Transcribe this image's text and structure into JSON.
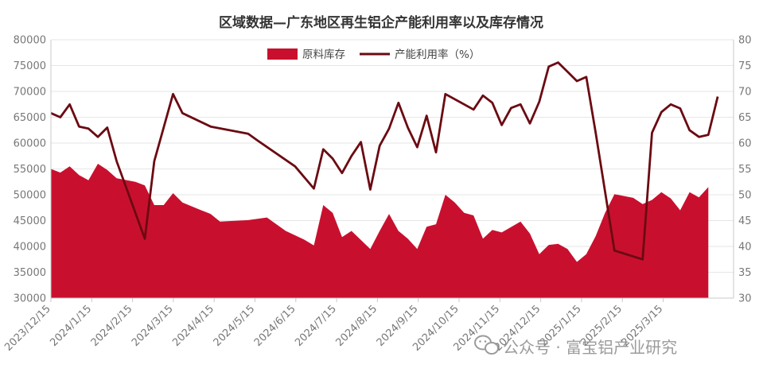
{
  "chart_data": {
    "type": "area+line",
    "title": "区域数据—广东地区再生铝企产能利用率以及库存情况",
    "x_ticks": [
      "2023/12/15",
      "2024/1/15",
      "2024/2/15",
      "2024/3/15",
      "2024/4/15",
      "2024/5/15",
      "2024/6/15",
      "2024/7/15",
      "2024/8/15",
      "2024/9/15",
      "2024/10/15",
      "2024/11/15",
      "2024/12/15",
      "2025/1/15",
      "2025/2/15",
      "2025/3/15"
    ],
    "y_left": {
      "min": 30000,
      "max": 80000,
      "step": 5000,
      "ticks": [
        "30000",
        "35000",
        "40000",
        "45000",
        "50000",
        "55000",
        "60000",
        "65000",
        "70000",
        "75000",
        "80000"
      ]
    },
    "y_right": {
      "min": 30,
      "max": 80,
      "step": 5,
      "ticks": [
        "30",
        "35",
        "40",
        "45",
        "50",
        "55",
        "60",
        "65",
        "70",
        "75",
        "80"
      ]
    },
    "legend": {
      "position": "top-center"
    },
    "series": [
      {
        "name": "原料库存",
        "kind": "area",
        "axis": "left",
        "color": "#c8102e",
        "points": [
          [
            "2023-12-15",
            55000
          ],
          [
            "2023-12-22",
            54300
          ],
          [
            "2023-12-29",
            55500
          ],
          [
            "2024-01-05",
            53800
          ],
          [
            "2024-01-12",
            52800
          ],
          [
            "2024-01-19",
            56000
          ],
          [
            "2024-01-26",
            54800
          ],
          [
            "2024-02-02",
            53200
          ],
          [
            "2024-02-16",
            52500
          ],
          [
            "2024-02-23",
            51800
          ],
          [
            "2024-03-01",
            48000
          ],
          [
            "2024-03-08",
            48000
          ],
          [
            "2024-03-15",
            50300
          ],
          [
            "2024-03-22",
            48500
          ],
          [
            "2024-04-05",
            47000
          ],
          [
            "2024-04-12",
            46300
          ],
          [
            "2024-04-19",
            44800
          ],
          [
            "2024-05-10",
            45100
          ],
          [
            "2024-05-24",
            45600
          ],
          [
            "2024-06-07",
            43000
          ],
          [
            "2024-06-21",
            41300
          ],
          [
            "2024-06-28",
            40200
          ],
          [
            "2024-07-05",
            48000
          ],
          [
            "2024-07-12",
            46500
          ],
          [
            "2024-07-19",
            41800
          ],
          [
            "2024-07-26",
            43000
          ],
          [
            "2024-08-09",
            39500
          ],
          [
            "2024-08-16",
            43000
          ],
          [
            "2024-08-23",
            46300
          ],
          [
            "2024-08-30",
            43000
          ],
          [
            "2024-09-06",
            41500
          ],
          [
            "2024-09-13",
            39500
          ],
          [
            "2024-09-20",
            43800
          ],
          [
            "2024-09-27",
            44300
          ],
          [
            "2024-10-04",
            50000
          ],
          [
            "2024-10-11",
            48500
          ],
          [
            "2024-10-18",
            46500
          ],
          [
            "2024-10-25",
            46000
          ],
          [
            "2024-11-01",
            41500
          ],
          [
            "2024-11-08",
            43200
          ],
          [
            "2024-11-15",
            42700
          ],
          [
            "2024-11-29",
            44800
          ],
          [
            "2024-12-06",
            42500
          ],
          [
            "2024-12-13",
            38500
          ],
          [
            "2024-12-20",
            40300
          ],
          [
            "2024-12-27",
            40500
          ],
          [
            "2025-01-03",
            39500
          ],
          [
            "2025-01-10",
            37000
          ],
          [
            "2025-01-17",
            38500
          ],
          [
            "2025-01-24",
            42000
          ],
          [
            "2025-01-31",
            46500
          ],
          [
            "2025-02-07",
            50100
          ],
          [
            "2025-02-21",
            49400
          ],
          [
            "2025-02-28",
            48200
          ],
          [
            "2025-03-07",
            49000
          ],
          [
            "2025-03-14",
            50500
          ],
          [
            "2025-03-21",
            49300
          ],
          [
            "2025-03-28",
            47000
          ],
          [
            "2025-04-04",
            50500
          ],
          [
            "2025-04-11",
            49500
          ],
          [
            "2025-04-18",
            51500
          ]
        ]
      },
      {
        "name": "产能利用率（%）",
        "kind": "line",
        "axis": "right",
        "color": "#6b0a12",
        "points": [
          [
            "2023-12-15",
            65.8
          ],
          [
            "2023-12-22",
            65.0
          ],
          [
            "2023-12-29",
            67.5
          ],
          [
            "2024-01-05",
            63.2
          ],
          [
            "2024-01-12",
            62.8
          ],
          [
            "2024-01-19",
            61.2
          ],
          [
            "2024-01-26",
            63.0
          ],
          [
            "2024-02-02",
            56.5
          ],
          [
            "2024-02-09",
            51.5
          ],
          [
            "2024-02-16",
            46.5
          ],
          [
            "2024-02-23",
            41.5
          ],
          [
            "2024-03-01",
            56.5
          ],
          [
            "2024-03-15",
            69.5
          ],
          [
            "2024-03-22",
            65.8
          ],
          [
            "2024-04-12",
            63.2
          ],
          [
            "2024-05-10",
            61.8
          ],
          [
            "2024-05-17",
            60.5
          ],
          [
            "2024-06-14",
            55.5
          ],
          [
            "2024-06-28",
            51.2
          ],
          [
            "2024-07-05",
            58.8
          ],
          [
            "2024-07-12",
            57.0
          ],
          [
            "2024-07-19",
            54.2
          ],
          [
            "2024-07-26",
            57.5
          ],
          [
            "2024-08-02",
            60.2
          ],
          [
            "2024-08-09",
            51.0
          ],
          [
            "2024-08-16",
            59.5
          ],
          [
            "2024-08-23",
            62.8
          ],
          [
            "2024-08-30",
            67.8
          ],
          [
            "2024-09-06",
            63.0
          ],
          [
            "2024-09-13",
            59.2
          ],
          [
            "2024-09-20",
            65.3
          ],
          [
            "2024-09-27",
            58.2
          ],
          [
            "2024-10-04",
            69.5
          ],
          [
            "2024-10-25",
            66.5
          ],
          [
            "2024-11-01",
            69.2
          ],
          [
            "2024-11-08",
            67.8
          ],
          [
            "2024-11-15",
            63.5
          ],
          [
            "2024-11-22",
            66.8
          ],
          [
            "2024-11-29",
            67.5
          ],
          [
            "2024-12-06",
            63.8
          ],
          [
            "2024-12-13",
            68.0
          ],
          [
            "2024-12-20",
            74.8
          ],
          [
            "2024-12-27",
            75.6
          ],
          [
            "2025-01-03",
            73.8
          ],
          [
            "2025-01-10",
            72.0
          ],
          [
            "2025-01-17",
            72.8
          ],
          [
            "2025-01-24",
            62.0
          ],
          [
            "2025-02-07",
            39.2
          ],
          [
            "2025-02-28",
            37.5
          ],
          [
            "2025-03-07",
            62.0
          ],
          [
            "2025-03-14",
            66.0
          ],
          [
            "2025-03-21",
            67.5
          ],
          [
            "2025-03-28",
            66.7
          ],
          [
            "2025-04-04",
            62.5
          ],
          [
            "2025-04-11",
            61.2
          ],
          [
            "2025-04-18",
            61.6
          ],
          [
            "2025-04-25",
            69.0
          ]
        ]
      }
    ]
  },
  "watermark": {
    "text": "公众号 · 富宝铝产业研究",
    "icon": "wechat-icon"
  }
}
